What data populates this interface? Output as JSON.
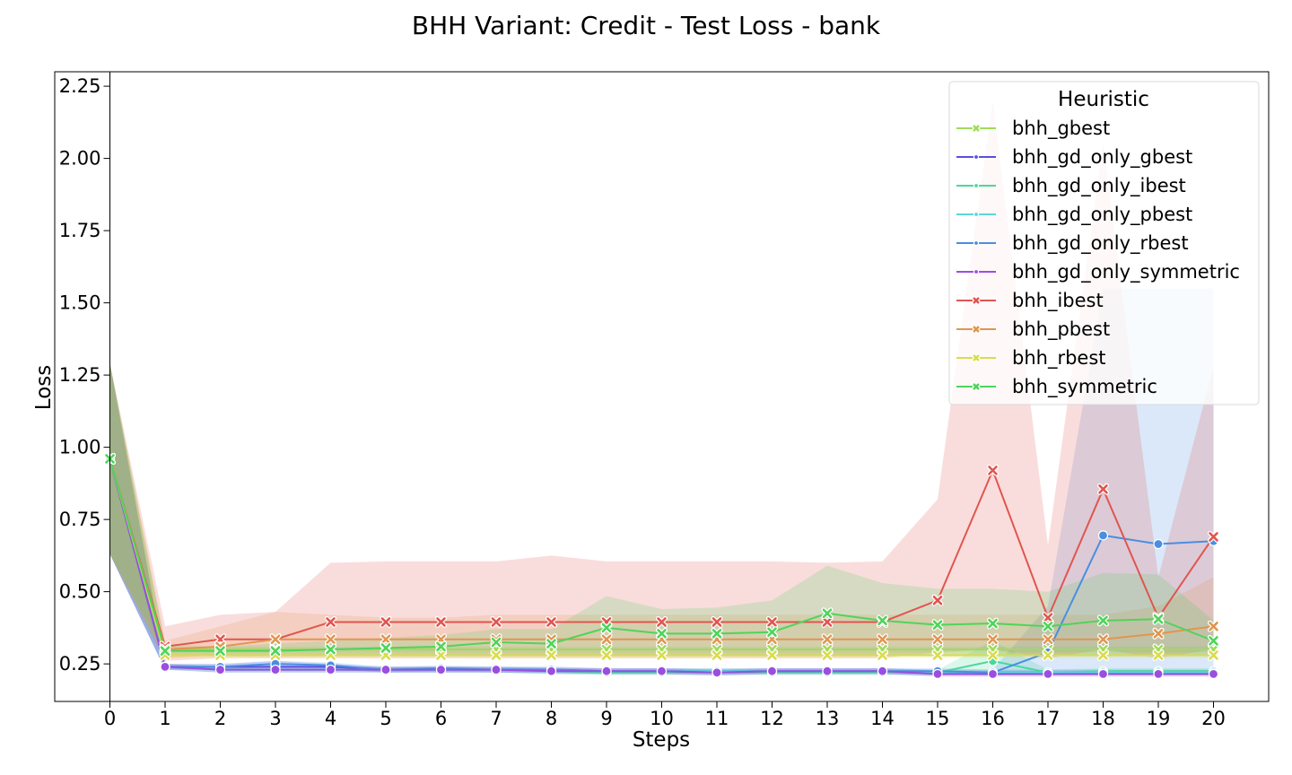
{
  "chart_data": {
    "type": "line",
    "title": "BHH Variant: Credit - Test Loss - bank",
    "xlabel": "Steps",
    "ylabel": "Loss",
    "x": [
      0,
      1,
      2,
      3,
      4,
      5,
      6,
      7,
      8,
      9,
      10,
      11,
      12,
      13,
      14,
      15,
      16,
      17,
      18,
      19,
      20
    ],
    "xlim": [
      -1,
      21
    ],
    "ylim": [
      0.12,
      2.3
    ],
    "yticks": [
      "0.25",
      "0.50",
      "0.75",
      "1.00",
      "1.25",
      "1.50",
      "1.75",
      "2.00",
      "2.25"
    ],
    "ytick_values": [
      0.25,
      0.5,
      0.75,
      1.0,
      1.25,
      1.5,
      1.75,
      2.0,
      2.25
    ],
    "grid": false,
    "legend": {
      "title": "Heuristic",
      "placement": "top-right"
    },
    "series": [
      {
        "name": "bhh_gbest",
        "color": "#9fdc5a",
        "marker": "x",
        "values": [
          0.96,
          0.3,
          0.3,
          0.3,
          0.3,
          0.3,
          0.3,
          0.3,
          0.3,
          0.3,
          0.3,
          0.3,
          0.3,
          0.3,
          0.3,
          0.3,
          0.3,
          0.3,
          0.3,
          0.3,
          0.3
        ],
        "band_low": [
          0.63,
          0.29,
          0.29,
          0.29,
          0.29,
          0.29,
          0.29,
          0.29,
          0.29,
          0.29,
          0.29,
          0.29,
          0.29,
          0.29,
          0.29,
          0.29,
          0.29,
          0.29,
          0.29,
          0.29,
          0.29
        ],
        "band_high": [
          1.29,
          0.32,
          0.31,
          0.31,
          0.31,
          0.31,
          0.31,
          0.31,
          0.31,
          0.31,
          0.31,
          0.31,
          0.31,
          0.31,
          0.31,
          0.31,
          0.31,
          0.31,
          0.31,
          0.31,
          0.31
        ]
      },
      {
        "name": "bhh_gd_only_gbest",
        "color": "#5a4ee0",
        "marker": "o",
        "values": [
          0.96,
          0.24,
          0.24,
          0.24,
          0.24,
          0.23,
          0.23,
          0.23,
          0.23,
          0.225,
          0.225,
          0.225,
          0.225,
          0.225,
          0.225,
          0.22,
          0.22,
          0.22,
          0.22,
          0.22,
          0.22
        ],
        "band_low": [
          0.63,
          0.23,
          0.23,
          0.23,
          0.23,
          0.22,
          0.22,
          0.22,
          0.22,
          0.215,
          0.215,
          0.215,
          0.215,
          0.215,
          0.215,
          0.21,
          0.21,
          0.21,
          0.21,
          0.21,
          0.21
        ],
        "band_high": [
          1.29,
          0.25,
          0.25,
          0.26,
          0.25,
          0.24,
          0.24,
          0.24,
          0.24,
          0.235,
          0.235,
          0.235,
          0.235,
          0.235,
          0.235,
          0.23,
          0.23,
          0.23,
          0.23,
          0.23,
          0.23
        ]
      },
      {
        "name": "bhh_gd_only_ibest",
        "color": "#4ad89a",
        "marker": "o",
        "values": [
          0.96,
          0.24,
          0.23,
          0.23,
          0.23,
          0.23,
          0.23,
          0.23,
          0.225,
          0.22,
          0.22,
          0.22,
          0.22,
          0.22,
          0.22,
          0.22,
          0.26,
          0.22,
          0.225,
          0.225,
          0.225
        ],
        "band_low": [
          0.63,
          0.23,
          0.22,
          0.22,
          0.22,
          0.22,
          0.22,
          0.22,
          0.215,
          0.21,
          0.21,
          0.21,
          0.21,
          0.21,
          0.21,
          0.21,
          0.22,
          0.21,
          0.215,
          0.215,
          0.215
        ],
        "band_high": [
          1.29,
          0.25,
          0.24,
          0.24,
          0.24,
          0.24,
          0.24,
          0.24,
          0.235,
          0.23,
          0.23,
          0.23,
          0.23,
          0.23,
          0.23,
          0.23,
          0.33,
          0.23,
          0.235,
          0.235,
          0.235
        ]
      },
      {
        "name": "bhh_gd_only_pbest",
        "color": "#5ad6dc",
        "marker": "o",
        "values": [
          0.96,
          0.24,
          0.23,
          0.23,
          0.23,
          0.23,
          0.23,
          0.23,
          0.225,
          0.225,
          0.225,
          0.225,
          0.225,
          0.225,
          0.225,
          0.22,
          0.22,
          0.22,
          0.22,
          0.22,
          0.22
        ],
        "band_low": [
          0.63,
          0.23,
          0.22,
          0.22,
          0.22,
          0.22,
          0.22,
          0.22,
          0.215,
          0.215,
          0.215,
          0.215,
          0.215,
          0.215,
          0.215,
          0.21,
          0.21,
          0.21,
          0.21,
          0.21,
          0.21
        ],
        "band_high": [
          1.29,
          0.25,
          0.24,
          0.24,
          0.24,
          0.24,
          0.24,
          0.24,
          0.235,
          0.235,
          0.235,
          0.235,
          0.235,
          0.235,
          0.235,
          0.23,
          0.23,
          0.23,
          0.23,
          0.23,
          0.23
        ]
      },
      {
        "name": "bhh_gd_only_rbest",
        "color": "#4a8ee0",
        "marker": "o",
        "values": [
          0.96,
          0.24,
          0.24,
          0.25,
          0.245,
          0.23,
          0.235,
          0.23,
          0.23,
          0.225,
          0.225,
          0.22,
          0.225,
          0.225,
          0.225,
          0.225,
          0.22,
          0.29,
          0.695,
          0.665,
          0.675
        ],
        "band_low": [
          0.63,
          0.23,
          0.23,
          0.24,
          0.235,
          0.22,
          0.225,
          0.22,
          0.22,
          0.215,
          0.215,
          0.21,
          0.215,
          0.215,
          0.215,
          0.215,
          0.21,
          0.22,
          0.22,
          0.22,
          0.22
        ],
        "band_high": [
          1.29,
          0.25,
          0.25,
          0.26,
          0.255,
          0.24,
          0.245,
          0.24,
          0.24,
          0.235,
          0.235,
          0.23,
          0.235,
          0.235,
          0.235,
          0.235,
          0.23,
          0.45,
          1.55,
          1.55,
          1.55
        ]
      },
      {
        "name": "bhh_gd_only_symmetric",
        "color": "#9a4ee0",
        "marker": "o",
        "values": [
          0.96,
          0.24,
          0.23,
          0.23,
          0.23,
          0.23,
          0.23,
          0.23,
          0.225,
          0.225,
          0.225,
          0.22,
          0.225,
          0.225,
          0.225,
          0.215,
          0.215,
          0.215,
          0.215,
          0.215,
          0.215
        ],
        "band_low": [
          0.63,
          0.23,
          0.22,
          0.22,
          0.22,
          0.22,
          0.22,
          0.22,
          0.215,
          0.215,
          0.215,
          0.21,
          0.215,
          0.215,
          0.215,
          0.205,
          0.205,
          0.205,
          0.205,
          0.205,
          0.205
        ],
        "band_high": [
          1.29,
          0.25,
          0.24,
          0.24,
          0.24,
          0.24,
          0.24,
          0.24,
          0.235,
          0.235,
          0.235,
          0.23,
          0.235,
          0.235,
          0.235,
          0.225,
          0.225,
          0.225,
          0.225,
          0.225,
          0.225
        ]
      },
      {
        "name": "bhh_ibest",
        "color": "#e0564f",
        "marker": "x",
        "values": [
          0.96,
          0.31,
          0.335,
          0.335,
          0.395,
          0.395,
          0.395,
          0.395,
          0.395,
          0.395,
          0.395,
          0.395,
          0.395,
          0.395,
          0.395,
          0.47,
          0.92,
          0.41,
          0.855,
          0.41,
          0.69
        ],
        "band_low": [
          0.63,
          0.26,
          0.27,
          0.27,
          0.27,
          0.27,
          0.27,
          0.27,
          0.27,
          0.27,
          0.27,
          0.27,
          0.27,
          0.27,
          0.27,
          0.29,
          0.3,
          0.27,
          0.3,
          0.27,
          0.3
        ],
        "band_high": [
          1.29,
          0.38,
          0.42,
          0.43,
          0.6,
          0.605,
          0.605,
          0.605,
          0.625,
          0.605,
          0.605,
          0.605,
          0.605,
          0.6,
          0.605,
          0.82,
          2.2,
          0.66,
          2.05,
          0.55,
          1.28
        ]
      },
      {
        "name": "bhh_pbest",
        "color": "#e0964f",
        "marker": "x",
        "values": [
          0.96,
          0.3,
          0.31,
          0.335,
          0.335,
          0.335,
          0.335,
          0.335,
          0.335,
          0.335,
          0.335,
          0.335,
          0.335,
          0.335,
          0.335,
          0.335,
          0.335,
          0.335,
          0.335,
          0.355,
          0.38
        ],
        "band_low": [
          0.63,
          0.27,
          0.28,
          0.28,
          0.28,
          0.28,
          0.28,
          0.28,
          0.28,
          0.28,
          0.28,
          0.28,
          0.28,
          0.28,
          0.28,
          0.28,
          0.28,
          0.28,
          0.28,
          0.28,
          0.28
        ],
        "band_high": [
          1.29,
          0.33,
          0.38,
          0.43,
          0.42,
          0.41,
          0.41,
          0.42,
          0.42,
          0.42,
          0.42,
          0.42,
          0.42,
          0.42,
          0.42,
          0.42,
          0.42,
          0.42,
          0.42,
          0.45,
          0.55
        ]
      },
      {
        "name": "bhh_rbest",
        "color": "#d9dc4e",
        "marker": "x",
        "values": [
          0.96,
          0.28,
          0.28,
          0.28,
          0.28,
          0.28,
          0.28,
          0.28,
          0.28,
          0.28,
          0.28,
          0.28,
          0.28,
          0.28,
          0.28,
          0.28,
          0.28,
          0.28,
          0.28,
          0.28,
          0.28
        ],
        "band_low": [
          0.63,
          0.27,
          0.27,
          0.27,
          0.27,
          0.27,
          0.27,
          0.27,
          0.27,
          0.27,
          0.27,
          0.27,
          0.27,
          0.27,
          0.27,
          0.27,
          0.27,
          0.27,
          0.27,
          0.27,
          0.27
        ],
        "band_high": [
          1.29,
          0.29,
          0.29,
          0.29,
          0.29,
          0.29,
          0.29,
          0.29,
          0.29,
          0.29,
          0.29,
          0.29,
          0.29,
          0.29,
          0.29,
          0.29,
          0.29,
          0.29,
          0.29,
          0.29,
          0.29
        ]
      },
      {
        "name": "bhh_symmetric",
        "color": "#4fd45a",
        "marker": "x",
        "values": [
          0.96,
          0.295,
          0.295,
          0.295,
          0.3,
          0.305,
          0.31,
          0.325,
          0.32,
          0.375,
          0.355,
          0.355,
          0.36,
          0.425,
          0.4,
          0.385,
          0.39,
          0.38,
          0.4,
          0.405,
          0.33
        ],
        "band_low": [
          0.63,
          0.28,
          0.28,
          0.28,
          0.28,
          0.28,
          0.28,
          0.28,
          0.28,
          0.28,
          0.28,
          0.28,
          0.28,
          0.28,
          0.28,
          0.28,
          0.28,
          0.28,
          0.28,
          0.28,
          0.28
        ],
        "band_high": [
          1.29,
          0.31,
          0.31,
          0.32,
          0.33,
          0.34,
          0.35,
          0.37,
          0.37,
          0.485,
          0.44,
          0.445,
          0.47,
          0.59,
          0.53,
          0.51,
          0.51,
          0.5,
          0.565,
          0.56,
          0.4
        ]
      }
    ]
  }
}
